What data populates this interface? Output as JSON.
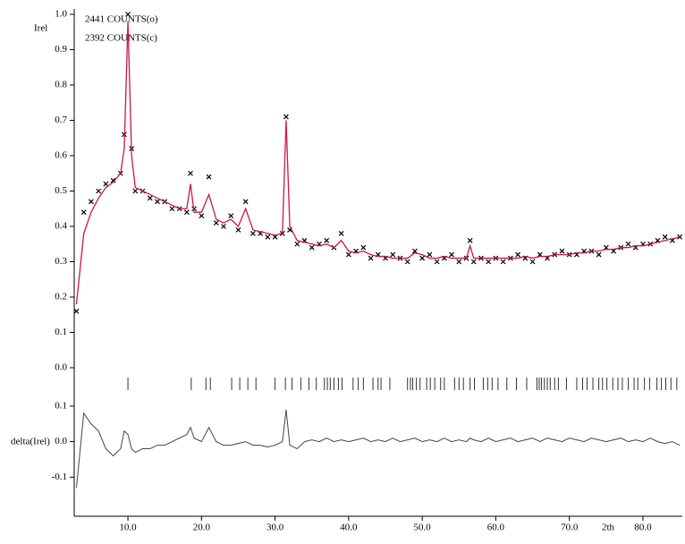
{
  "chart_data": {
    "type": "line",
    "x_label": "2th",
    "y_label": "Irel",
    "xlim": [
      2.7,
      85.35
    ],
    "xticks": [
      {
        "value": 10,
        "label": "10.0"
      },
      {
        "value": 20,
        "label": "20.0"
      },
      {
        "value": 30,
        "label": "30.0"
      },
      {
        "value": 40,
        "label": "40.0"
      },
      {
        "value": 50,
        "label": "50.0"
      },
      {
        "value": 60,
        "label": "60.0"
      },
      {
        "value": 70,
        "label": "70.0"
      },
      {
        "value": 80,
        "label": "80.0"
      }
    ],
    "ylim": [
      0,
      1
    ],
    "yticks": [
      {
        "value": 0,
        "label": "0.0"
      },
      0.1,
      0.2,
      0.3,
      0.4,
      0.5,
      0.6,
      0.7,
      0.8,
      0.9,
      {
        "value": 1,
        "label": "1.0"
      }
    ],
    "x": [
      3,
      4,
      5,
      6,
      7,
      8,
      9,
      9.5,
      10,
      10.5,
      11,
      12,
      13,
      14,
      15,
      16,
      17,
      18,
      18.5,
      19,
      20,
      21,
      22,
      23,
      24,
      25,
      26,
      27,
      28,
      29,
      30,
      31,
      31.5,
      32,
      33,
      34,
      35,
      36,
      37,
      38,
      39,
      40,
      41,
      42,
      43,
      44,
      45,
      46,
      47,
      48,
      49,
      50,
      51,
      52,
      53,
      54,
      55,
      56,
      56.5,
      57,
      58,
      59,
      60,
      61,
      62,
      63,
      64,
      65,
      66,
      67,
      68,
      69,
      70,
      71,
      72,
      73,
      74,
      75,
      76,
      77,
      78,
      79,
      80,
      81,
      82,
      83,
      84,
      85
    ],
    "series": [
      {
        "name": "2441 COUNTS(o)",
        "color": "#000000",
        "marker": "x",
        "values": [
          0.16,
          0.44,
          0.47,
          0.5,
          0.52,
          0.53,
          0.55,
          0.66,
          1.0,
          0.62,
          0.5,
          0.5,
          0.48,
          0.47,
          0.47,
          0.45,
          0.45,
          0.44,
          0.55,
          0.45,
          0.43,
          0.54,
          0.41,
          0.4,
          0.43,
          0.39,
          0.47,
          0.38,
          0.38,
          0.37,
          0.37,
          0.38,
          0.71,
          0.39,
          0.35,
          0.36,
          0.34,
          0.35,
          0.36,
          0.34,
          0.38,
          0.32,
          0.33,
          0.34,
          0.31,
          0.32,
          0.31,
          0.32,
          0.31,
          0.3,
          0.33,
          0.31,
          0.32,
          0.3,
          0.31,
          0.32,
          0.3,
          0.31,
          0.36,
          0.3,
          0.31,
          0.3,
          0.31,
          0.3,
          0.31,
          0.32,
          0.31,
          0.3,
          0.32,
          0.31,
          0.32,
          0.33,
          0.32,
          0.32,
          0.33,
          0.33,
          0.32,
          0.34,
          0.33,
          0.34,
          0.35,
          0.34,
          0.35,
          0.35,
          0.36,
          0.37,
          0.36,
          0.37
        ]
      },
      {
        "name": "2392 COUNTS(c)",
        "color": "#cc1450",
        "values": [
          0.18,
          0.38,
          0.44,
          0.48,
          0.51,
          0.525,
          0.55,
          0.62,
          0.98,
          0.6,
          0.51,
          0.5,
          0.49,
          0.48,
          0.47,
          0.46,
          0.45,
          0.45,
          0.52,
          0.44,
          0.44,
          0.49,
          0.42,
          0.41,
          0.42,
          0.4,
          0.45,
          0.39,
          0.385,
          0.38,
          0.375,
          0.38,
          0.7,
          0.4,
          0.36,
          0.355,
          0.35,
          0.345,
          0.35,
          0.34,
          0.36,
          0.33,
          0.325,
          0.33,
          0.32,
          0.315,
          0.315,
          0.31,
          0.31,
          0.31,
          0.325,
          0.32,
          0.31,
          0.31,
          0.315,
          0.31,
          0.31,
          0.31,
          0.345,
          0.31,
          0.31,
          0.31,
          0.31,
          0.31,
          0.31,
          0.31,
          0.315,
          0.31,
          0.315,
          0.315,
          0.32,
          0.32,
          0.32,
          0.325,
          0.325,
          0.33,
          0.33,
          0.335,
          0.335,
          0.34,
          0.34,
          0.345,
          0.345,
          0.35,
          0.355,
          0.36,
          0.365,
          0.37
        ]
      }
    ],
    "reflections": [
      10.0,
      18.6,
      20.6,
      21.2,
      24.1,
      25.2,
      26.3,
      27.4,
      30.0,
      31.4,
      32.3,
      33.5,
      34.6,
      35.6,
      36.7,
      37.1,
      37.5,
      38.0,
      38.6,
      39.1,
      40.6,
      41.3,
      42.0,
      43.3,
      44.0,
      44.4,
      45.6,
      48.0,
      48.4,
      48.7,
      49.2,
      49.7,
      50.6,
      51.1,
      51.7,
      52.5,
      53.0,
      54.4,
      55.0,
      55.6,
      56.5,
      57.1,
      58.3,
      58.9,
      59.5,
      60.3,
      61.5,
      62.8,
      64.2,
      65.6,
      65.9,
      66.2,
      66.6,
      67.0,
      67.4,
      68.0,
      68.5,
      69.6,
      71.0,
      71.8,
      72.4,
      73.2,
      74.0,
      74.5,
      75.1,
      75.9,
      76.6,
      77.2,
      78.0,
      78.8,
      79.3,
      80.2,
      80.9,
      81.9,
      82.5,
      83.1,
      83.8,
      84.6
    ],
    "difference": {
      "y_label": "delta(Irel)",
      "color": "#444444",
      "ylim": [
        -0.21,
        0.135
      ],
      "yticks": [
        -0.1,
        {
          "value": 0,
          "label": "0.0"
        },
        0.1
      ],
      "values": [
        -0.13,
        0.08,
        0.05,
        0.03,
        -0.02,
        -0.04,
        -0.02,
        0.03,
        0.02,
        -0.02,
        -0.03,
        -0.02,
        -0.02,
        -0.01,
        -0.01,
        0.0,
        0.01,
        0.02,
        0.04,
        0.01,
        0.0,
        0.04,
        0.0,
        -0.01,
        -0.01,
        -0.005,
        0.0,
        -0.01,
        -0.01,
        -0.015,
        -0.01,
        0.0,
        0.09,
        -0.01,
        -0.02,
        0.0,
        0.005,
        0.0,
        0.01,
        0.0,
        0.005,
        0.0,
        0.005,
        0.01,
        0.0,
        0.005,
        0.0,
        0.01,
        0.0,
        0.005,
        0.01,
        0.0,
        0.005,
        0.0,
        0.01,
        0.0,
        0.005,
        0.0,
        0.01,
        0.005,
        0.0,
        0.01,
        0.0,
        0.005,
        0.01,
        0.0,
        0.005,
        0.01,
        0.0,
        0.01,
        0.005,
        0.0,
        0.01,
        0.005,
        0.0,
        0.01,
        0.005,
        0.0,
        0.005,
        0.01,
        0.0,
        0.005,
        0.0,
        0.01,
        0.0,
        -0.005,
        0.0,
        -0.01
      ]
    }
  }
}
